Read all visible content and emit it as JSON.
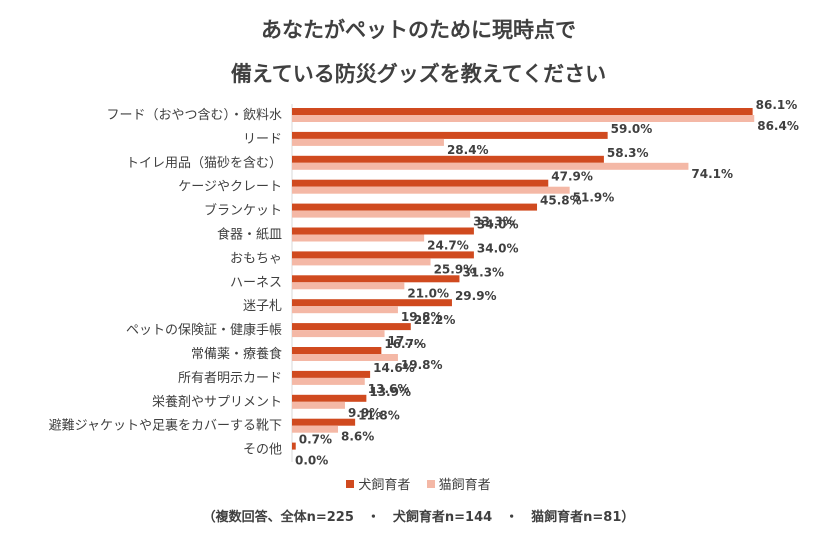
{
  "chart_data": {
    "type": "bar",
    "orientation": "horizontal",
    "title_line1": "あなたがペットのために現時点で",
    "title_line2": "備えている防災グッズを教えてください",
    "categories": [
      "フード（おやつ含む）・飲料水",
      "リード",
      "トイレ用品（猫砂を含む）",
      "ケージやクレート",
      "ブランケット",
      "食器・紙皿",
      "おもちゃ",
      "ハーネス",
      "迷子札",
      "ペットの保険証・健康手帳",
      "常備薬・療養食",
      "所有者明示カード",
      "栄養剤やサプリメント",
      "避難ジャケットや足裏をカバーする靴下",
      "その他"
    ],
    "series": [
      {
        "name": "犬飼育者",
        "color": "#D04A1F",
        "values": [
          86.1,
          59.0,
          58.3,
          47.9,
          45.8,
          34.0,
          34.0,
          31.3,
          29.9,
          22.2,
          16.7,
          14.6,
          13.9,
          11.8,
          0.7
        ],
        "labels": [
          "86.1%",
          "59.0%",
          "58.3%",
          "47.9%",
          "45.8%",
          "34.0%",
          "34.0%",
          "31.3%",
          "29.9%",
          "22.2%",
          "16.7%",
          "14.6%",
          "13.9%",
          "11.8%",
          "0.7%"
        ]
      },
      {
        "name": "猫飼育者",
        "color": "#F4B8A6",
        "values": [
          86.4,
          28.4,
          74.1,
          51.9,
          33.3,
          24.7,
          25.9,
          21.0,
          19.8,
          17.3,
          19.8,
          13.6,
          9.9,
          8.6,
          0.0
        ],
        "labels": [
          "86.4%",
          "28.4%",
          "74.1%",
          "51.9%",
          "33.3%",
          "24.7%",
          "25.9%",
          "21.0%",
          "19.8%",
          "17....",
          "19.8%",
          "13.6%",
          "9.9%",
          "8.6%",
          "0.0%"
        ]
      }
    ],
    "xlim": [
      0,
      100
    ],
    "note": "（複数回答、全体n=225　・　犬飼育者n=144　・　猫飼育者n=81）"
  }
}
